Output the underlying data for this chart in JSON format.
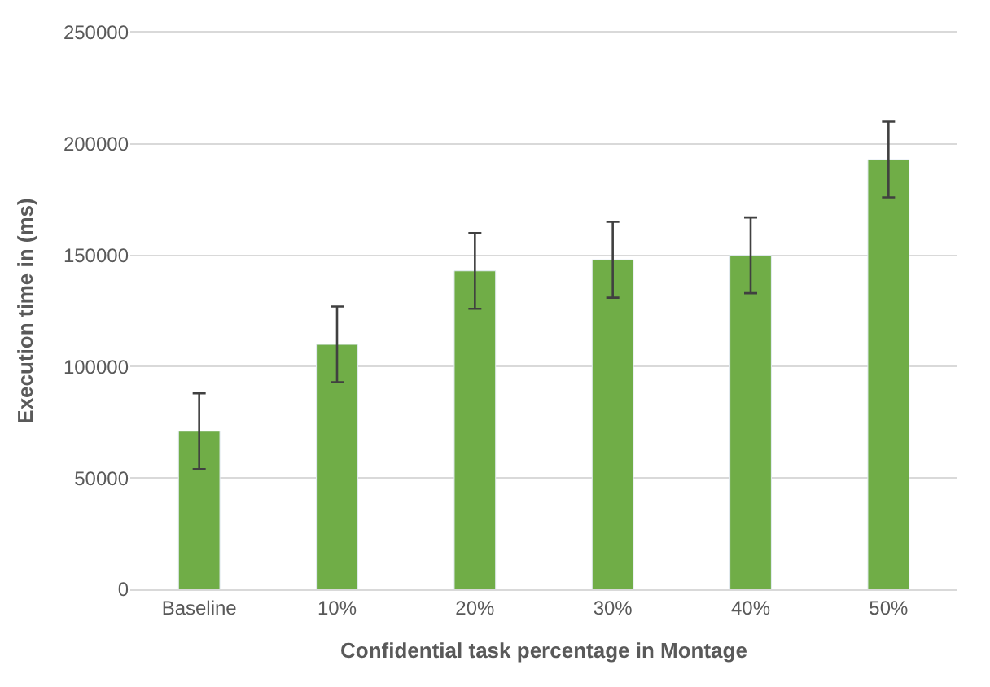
{
  "chart_data": {
    "type": "bar",
    "xlabel": "Confidential task percentage in Montage",
    "ylabel": "Execution time in (ms)",
    "categories": [
      "Baseline",
      "10%",
      "20%",
      "30%",
      "40%",
      "50%"
    ],
    "values": [
      71000,
      110000,
      143000,
      148000,
      150000,
      193000
    ],
    "errors": [
      17000,
      17000,
      17000,
      17000,
      17000,
      17000
    ],
    "color": "#70ad47",
    "ylim": [
      0,
      250000
    ],
    "yticks": [
      0,
      50000,
      100000,
      150000,
      200000,
      250000
    ],
    "grid": "y"
  }
}
